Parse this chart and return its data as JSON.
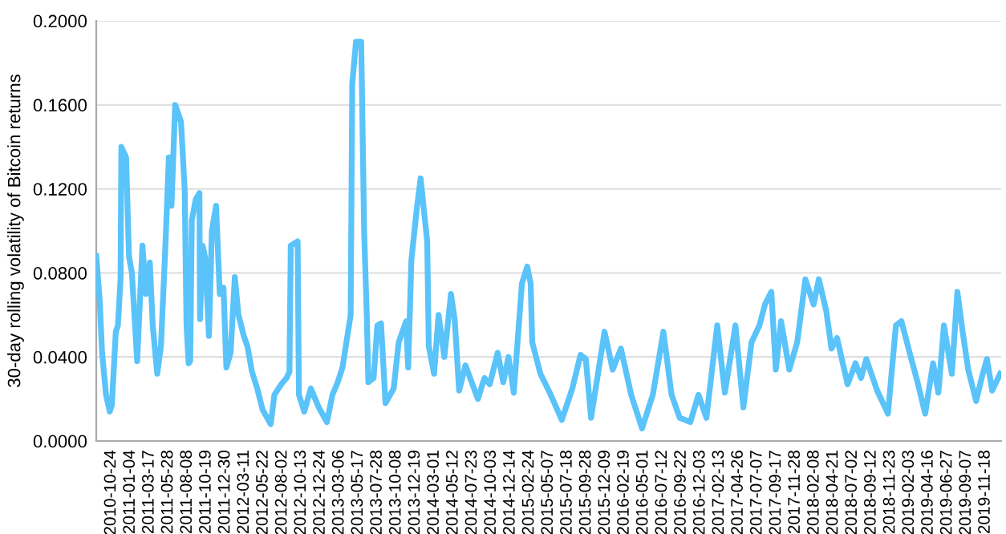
{
  "chart_data": {
    "type": "line",
    "ylabel": "30-day rolling volatility of Bitcoin returns",
    "xlim": [
      "2010-08-28",
      "2020-01-17"
    ],
    "ylim": [
      0,
      0.2
    ],
    "yticks": [
      {
        "value": 0,
        "label": "0.0000"
      },
      {
        "value": 0.04,
        "label": "0.0400"
      },
      {
        "value": 0.08,
        "label": "0.0800"
      },
      {
        "value": 0.12,
        "label": "0.1200"
      },
      {
        "value": 0.16,
        "label": "0.1600"
      },
      {
        "value": 0.2,
        "label": "0.2000"
      }
    ],
    "xticks": [
      "2010-10-24",
      "2011-01-04",
      "2011-03-17",
      "2011-05-28",
      "2011-08-08",
      "2011-10-19",
      "2011-12-30",
      "2012-03-11",
      "2012-05-22",
      "2012-08-02",
      "2012-10-13",
      "2012-12-24",
      "2013-03-06",
      "2013-05-17",
      "2013-07-28",
      "2013-10-08",
      "2013-12-19",
      "2014-03-01",
      "2014-05-12",
      "2014-07-23",
      "2014-10-03",
      "2014-12-14",
      "2015-02-24",
      "2015-05-07",
      "2015-07-18",
      "2015-09-28",
      "2015-12-09",
      "2016-02-19",
      "2016-05-01",
      "2016-07-12",
      "2016-09-22",
      "2016-12-03",
      "2017-02-13",
      "2017-04-26",
      "2017-07-07",
      "2017-09-17",
      "2017-11-28",
      "2018-02-08",
      "2018-04-21",
      "2018-07-02",
      "2018-09-12",
      "2018-11-23",
      "2019-02-03",
      "2019-04-16",
      "2019-06-27",
      "2019-09-07",
      "2019-11-18"
    ],
    "grid": "y",
    "legend": false,
    "line_style": "solid",
    "series": [
      {
        "color": "#5ac3fa",
        "x": [
          "2010-08-28",
          "2010-09-10",
          "2010-09-19",
          "2010-10-04",
          "2010-10-18",
          "2010-10-26",
          "2010-11-10",
          "2010-11-18",
          "2010-11-28",
          "2010-12-01",
          "2010-12-19",
          "2010-12-30",
          "2011-01-10",
          "2011-01-30",
          "2011-02-19",
          "2011-03-04",
          "2011-03-19",
          "2011-03-30",
          "2011-04-16",
          "2011-04-30",
          "2011-05-16",
          "2011-05-30",
          "2011-06-09",
          "2011-06-23",
          "2011-07-15",
          "2011-07-29",
          "2011-08-05",
          "2011-08-13",
          "2011-08-19",
          "2011-08-25",
          "2011-09-09",
          "2011-09-23",
          "2011-09-25",
          "2011-10-05",
          "2011-10-15",
          "2011-10-29",
          "2011-11-09",
          "2011-11-25",
          "2011-12-09",
          "2011-12-23",
          "2012-01-03",
          "2012-01-19",
          "2012-02-04",
          "2012-02-18",
          "2012-03-09",
          "2012-03-23",
          "2012-04-09",
          "2012-04-29",
          "2012-05-19",
          "2012-06-19",
          "2012-07-03",
          "2012-07-29",
          "2012-08-18",
          "2012-08-29",
          "2012-09-03",
          "2012-09-29",
          "2012-10-04",
          "2012-10-24",
          "2012-11-18",
          "2012-12-18",
          "2013-01-18",
          "2013-02-08",
          "2013-02-28",
          "2013-03-18",
          "2013-04-18",
          "2013-04-24",
          "2013-05-08",
          "2013-05-28",
          "2013-06-08",
          "2013-06-18",
          "2013-06-24",
          "2013-07-14",
          "2013-07-28",
          "2013-08-11",
          "2013-08-28",
          "2013-09-28",
          "2013-10-17",
          "2013-11-14",
          "2013-11-22",
          "2013-12-04",
          "2013-12-24",
          "2014-01-08",
          "2014-02-02",
          "2014-02-08",
          "2014-02-28",
          "2014-03-17",
          "2014-04-08",
          "2014-05-03",
          "2014-05-17",
          "2014-06-03",
          "2014-06-27",
          "2014-08-13",
          "2014-09-07",
          "2014-09-27",
          "2014-10-27",
          "2014-11-17",
          "2014-12-07",
          "2014-12-27",
          "2015-01-27",
          "2015-02-16",
          "2015-03-01",
          "2015-03-07",
          "2015-04-07",
          "2015-05-16",
          "2015-06-27",
          "2015-08-06",
          "2015-09-06",
          "2015-09-26",
          "2015-10-16",
          "2015-12-06",
          "2016-01-06",
          "2016-02-06",
          "2016-03-16",
          "2016-04-26",
          "2016-06-06",
          "2016-07-16",
          "2016-08-16",
          "2016-09-16",
          "2016-10-26",
          "2016-11-26",
          "2016-12-26",
          "2017-02-05",
          "2017-03-06",
          "2017-04-15",
          "2017-05-15",
          "2017-06-15",
          "2017-07-15",
          "2017-08-05",
          "2017-08-29",
          "2017-09-15",
          "2017-10-05",
          "2017-11-05",
          "2017-12-05",
          "2018-01-05",
          "2018-02-05",
          "2018-02-25",
          "2018-03-25",
          "2018-04-14",
          "2018-05-05",
          "2018-06-14",
          "2018-07-14",
          "2018-08-04",
          "2018-08-24",
          "2018-10-04",
          "2018-11-14",
          "2018-12-14",
          "2019-01-04",
          "2019-02-04",
          "2019-03-04",
          "2019-04-04",
          "2019-05-04",
          "2019-05-24",
          "2019-06-14",
          "2019-07-14",
          "2019-08-04",
          "2019-08-24",
          "2019-09-14",
          "2019-10-14",
          "2019-11-04",
          "2019-11-24",
          "2019-12-14",
          "2020-01-13"
        ],
        "values": [
          0.088,
          0.067,
          0.042,
          0.022,
          0.014,
          0.017,
          0.052,
          0.055,
          0.077,
          0.14,
          0.135,
          0.088,
          0.08,
          0.038,
          0.093,
          0.07,
          0.085,
          0.055,
          0.032,
          0.045,
          0.09,
          0.135,
          0.112,
          0.16,
          0.152,
          0.12,
          0.055,
          0.037,
          0.038,
          0.105,
          0.115,
          0.118,
          0.058,
          0.093,
          0.087,
          0.05,
          0.1,
          0.112,
          0.07,
          0.073,
          0.035,
          0.042,
          0.078,
          0.06,
          0.05,
          0.045,
          0.033,
          0.025,
          0.015,
          0.008,
          0.022,
          0.027,
          0.03,
          0.033,
          0.093,
          0.095,
          0.022,
          0.014,
          0.025,
          0.016,
          0.009,
          0.022,
          0.028,
          0.035,
          0.06,
          0.17,
          0.19,
          0.19,
          0.1,
          0.06,
          0.028,
          0.03,
          0.055,
          0.056,
          0.018,
          0.025,
          0.047,
          0.057,
          0.035,
          0.086,
          0.11,
          0.125,
          0.095,
          0.045,
          0.032,
          0.06,
          0.04,
          0.07,
          0.058,
          0.024,
          0.036,
          0.02,
          0.03,
          0.027,
          0.042,
          0.028,
          0.04,
          0.023,
          0.075,
          0.083,
          0.075,
          0.047,
          0.032,
          0.022,
          0.01,
          0.025,
          0.041,
          0.039,
          0.011,
          0.052,
          0.034,
          0.044,
          0.022,
          0.006,
          0.022,
          0.052,
          0.022,
          0.011,
          0.009,
          0.022,
          0.011,
          0.055,
          0.023,
          0.055,
          0.016,
          0.047,
          0.055,
          0.065,
          0.071,
          0.034,
          0.057,
          0.034,
          0.047,
          0.077,
          0.065,
          0.077,
          0.062,
          0.044,
          0.049,
          0.027,
          0.037,
          0.03,
          0.039,
          0.024,
          0.013,
          0.055,
          0.057,
          0.042,
          0.029,
          0.013,
          0.037,
          0.023,
          0.055,
          0.032,
          0.071,
          0.052,
          0.034,
          0.019,
          0.03,
          0.039,
          0.024,
          0.032
        ]
      }
    ]
  }
}
